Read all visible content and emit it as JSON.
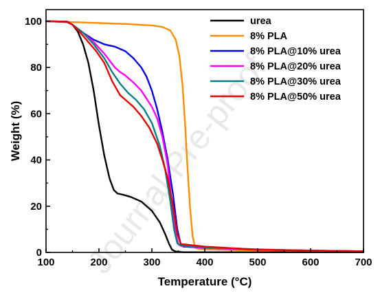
{
  "watermark": "Journal Pre-proof",
  "chart_data": {
    "type": "line",
    "title": "",
    "xlabel": "Temperature (°C)",
    "ylabel": "Weight (%)",
    "xlim": [
      100,
      700
    ],
    "ylim": [
      0,
      105
    ],
    "xticks": [
      100,
      200,
      300,
      400,
      500,
      600,
      700
    ],
    "yticks": [
      0,
      20,
      40,
      60,
      80,
      100
    ],
    "grid": false,
    "legend_position": "top-right",
    "series": [
      {
        "name": "urea",
        "color": "#000000",
        "x": [
          100,
          140,
          150,
          160,
          170,
          180,
          190,
          200,
          210,
          220,
          228,
          235,
          245,
          260,
          280,
          300,
          315,
          325,
          332,
          338,
          345,
          360,
          450,
          700
        ],
        "y": [
          100,
          99.6,
          98.5,
          95.5,
          90,
          82,
          70,
          55,
          42,
          32,
          27,
          25.5,
          25,
          24,
          22,
          18,
          13,
          8,
          4,
          1.2,
          0.4,
          0.1,
          0.1,
          0.1
        ]
      },
      {
        "name": "8% PLA",
        "color": "#FF8C00",
        "x": [
          100,
          150,
          200,
          250,
          300,
          320,
          335,
          345,
          352,
          358,
          363,
          367,
          372,
          377,
          382,
          390,
          450,
          700
        ],
        "y": [
          100,
          99.6,
          99.2,
          98.8,
          98.2,
          97.5,
          96,
          92,
          85,
          72,
          55,
          38,
          20,
          7,
          2,
          1.5,
          1,
          0.5
        ]
      },
      {
        "name": "8% PLA@10% urea",
        "color": "#0000E6",
        "x": [
          100,
          140,
          150,
          170,
          190,
          210,
          230,
          250,
          265,
          280,
          290,
          300,
          310,
          320,
          330,
          340,
          348,
          355,
          360,
          400,
          500,
          600,
          700
        ],
        "y": [
          100,
          99.8,
          98.5,
          95,
          92,
          90,
          89,
          87,
          84,
          80,
          76,
          70,
          62,
          52,
          40,
          25,
          10,
          3,
          2.5,
          2,
          1.2,
          0.8,
          0.5
        ]
      },
      {
        "name": "8% PLA@20% urea",
        "color": "#FF00FF",
        "x": [
          100,
          140,
          150,
          170,
          190,
          210,
          230,
          240,
          250,
          265,
          280,
          300,
          310,
          320,
          330,
          338,
          345,
          350,
          355,
          400,
          500,
          600,
          700
        ],
        "y": [
          100,
          99.8,
          98.5,
          95,
          91,
          86,
          80,
          78,
          76.5,
          73.5,
          70,
          63,
          58,
          50,
          38,
          20,
          8,
          3.5,
          2.8,
          2,
          1.2,
          0.8,
          0.5
        ]
      },
      {
        "name": "8% PLA@30% urea",
        "color": "#008080",
        "x": [
          100,
          140,
          150,
          170,
          190,
          210,
          225,
          240,
          255,
          270,
          285,
          300,
          315,
          325,
          335,
          342,
          348,
          355,
          400,
          500,
          600,
          700
        ],
        "y": [
          100,
          99.8,
          98.5,
          95,
          90,
          84,
          78,
          73,
          69,
          66,
          62,
          56,
          46,
          36,
          22,
          10,
          4,
          3,
          2.2,
          1.3,
          0.8,
          0.5
        ]
      },
      {
        "name": "8% PLA@50% urea",
        "color": "#E60000",
        "x": [
          100,
          140,
          150,
          165,
          180,
          195,
          210,
          225,
          240,
          250,
          265,
          280,
          295,
          310,
          320,
          330,
          340,
          348,
          355,
          360,
          400,
          500,
          600,
          700
        ],
        "y": [
          100,
          99.8,
          98.5,
          95,
          91,
          87,
          82,
          74,
          68,
          66,
          63,
          59,
          54,
          47,
          40,
          32,
          20,
          8,
          3.5,
          3.5,
          2.5,
          1.2,
          0.8,
          0.5
        ]
      }
    ]
  }
}
